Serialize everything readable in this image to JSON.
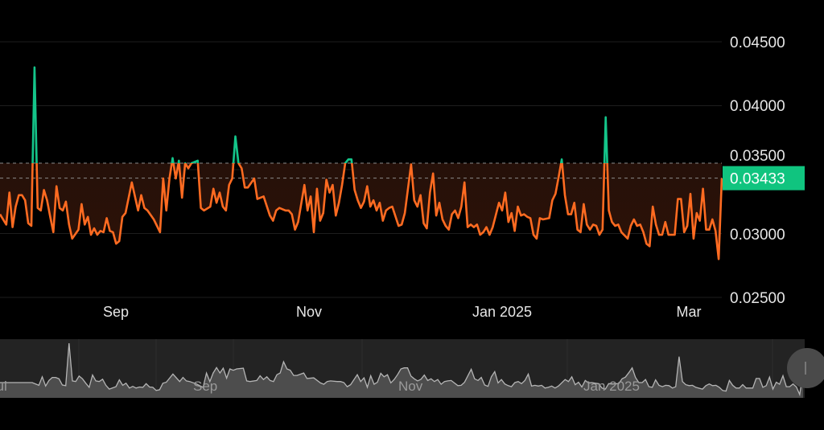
{
  "chart_data": {
    "type": "line",
    "style": "baseline",
    "title": "",
    "xlabel": "",
    "ylabel": "",
    "ylim": [
      0.025,
      0.045
    ],
    "grid": true,
    "baseline": 0.0355,
    "colors": {
      "above": "#14c58a",
      "below": "#ff6b21",
      "fill_below": "#3a1a0c",
      "badge": "#10c47f"
    },
    "y_ticks": [
      "0.04500",
      "0.04000",
      "0.03500",
      "0.03000",
      "0.02500"
    ],
    "x_ticks": [
      "Sep",
      "Nov",
      "Jan 2025",
      "Mar"
    ],
    "current_value": "0.03433",
    "points": [
      [
        "2024-07-26",
        0.0315
      ],
      [
        "2024-07-28",
        0.0307
      ],
      [
        "2024-07-29",
        0.0332
      ],
      [
        "2024-07-30",
        0.0305
      ],
      [
        "2024-07-31",
        0.0321
      ],
      [
        "2024-08-01",
        0.033
      ],
      [
        "2024-08-02",
        0.033
      ],
      [
        "2024-08-03",
        0.0326
      ],
      [
        "2024-08-04",
        0.0308
      ],
      [
        "2024-08-05",
        0.0306
      ],
      [
        "2024-08-06",
        0.043
      ],
      [
        "2024-08-07",
        0.032
      ],
      [
        "2024-08-08",
        0.0318
      ],
      [
        "2024-08-09",
        0.0334
      ],
      [
        "2024-08-10",
        0.0326
      ],
      [
        "2024-08-11",
        0.0313
      ],
      [
        "2024-08-12",
        0.0301
      ],
      [
        "2024-08-13",
        0.0337
      ],
      [
        "2024-08-14",
        0.032
      ],
      [
        "2024-08-15",
        0.0318
      ],
      [
        "2024-08-16",
        0.0325
      ],
      [
        "2024-08-17",
        0.0307
      ],
      [
        "2024-08-18",
        0.0296
      ],
      [
        "2024-08-20",
        0.0303
      ],
      [
        "2024-08-21",
        0.0323
      ],
      [
        "2024-08-22",
        0.0307
      ],
      [
        "2024-08-23",
        0.0313
      ],
      [
        "2024-08-24",
        0.0299
      ],
      [
        "2024-08-25",
        0.0304
      ],
      [
        "2024-08-26",
        0.0299
      ],
      [
        "2024-08-27",
        0.0302
      ],
      [
        "2024-08-28",
        0.0301
      ],
      [
        "2024-08-29",
        0.0312
      ],
      [
        "2024-08-30",
        0.0302
      ],
      [
        "2024-08-31",
        0.0301
      ],
      [
        "2024-09-01",
        0.0292
      ],
      [
        "2024-09-02",
        0.0294
      ],
      [
        "2024-09-03",
        0.0313
      ],
      [
        "2024-09-04",
        0.0316
      ],
      [
        "2024-09-06",
        0.034
      ],
      [
        "2024-09-08",
        0.0318
      ],
      [
        "2024-09-09",
        0.033
      ],
      [
        "2024-09-10",
        0.032
      ],
      [
        "2024-09-11",
        0.0318
      ],
      [
        "2024-09-13",
        0.0311
      ],
      [
        "2024-09-15",
        0.0301
      ],
      [
        "2024-09-16",
        0.0343
      ],
      [
        "2024-09-17",
        0.0318
      ],
      [
        "2024-09-18",
        0.0343
      ],
      [
        "2024-09-19",
        0.0359
      ],
      [
        "2024-09-20",
        0.0343
      ],
      [
        "2024-09-21",
        0.0357
      ],
      [
        "2024-09-22",
        0.0328
      ],
      [
        "2024-09-23",
        0.0355
      ],
      [
        "2024-09-24",
        0.0351
      ],
      [
        "2024-09-25",
        0.0355
      ],
      [
        "2024-09-27",
        0.0357
      ],
      [
        "2024-09-28",
        0.032
      ],
      [
        "2024-09-29",
        0.0318
      ],
      [
        "2024-10-01",
        0.0321
      ],
      [
        "2024-10-02",
        0.0335
      ],
      [
        "2024-10-03",
        0.0324
      ],
      [
        "2024-10-04",
        0.0332
      ],
      [
        "2024-10-05",
        0.0321
      ],
      [
        "2024-10-06",
        0.0318
      ],
      [
        "2024-10-07",
        0.0338
      ],
      [
        "2024-10-08",
        0.0343
      ],
      [
        "2024-10-09",
        0.0376
      ],
      [
        "2024-10-10",
        0.0355
      ],
      [
        "2024-10-11",
        0.0351
      ],
      [
        "2024-10-12",
        0.0336
      ],
      [
        "2024-10-13",
        0.0336
      ],
      [
        "2024-10-15",
        0.0343
      ],
      [
        "2024-10-16",
        0.0327
      ],
      [
        "2024-10-18",
        0.0329
      ],
      [
        "2024-10-20",
        0.0314
      ],
      [
        "2024-10-21",
        0.031
      ],
      [
        "2024-10-22",
        0.0318
      ],
      [
        "2024-10-23",
        0.032
      ],
      [
        "2024-10-25",
        0.0318
      ],
      [
        "2024-10-26",
        0.0318
      ],
      [
        "2024-10-27",
        0.0315
      ],
      [
        "2024-10-28",
        0.0303
      ],
      [
        "2024-10-29",
        0.0309
      ],
      [
        "2024-10-31",
        0.0338
      ],
      [
        "2024-11-01",
        0.0318
      ],
      [
        "2024-11-02",
        0.0329
      ],
      [
        "2024-11-03",
        0.0301
      ],
      [
        "2024-11-04",
        0.0335
      ],
      [
        "2024-11-05",
        0.031
      ],
      [
        "2024-11-06",
        0.0316
      ],
      [
        "2024-11-07",
        0.0342
      ],
      [
        "2024-11-08",
        0.0332
      ],
      [
        "2024-11-09",
        0.0338
      ],
      [
        "2024-11-10",
        0.0314
      ],
      [
        "2024-11-11",
        0.0324
      ],
      [
        "2024-11-12",
        0.0338
      ],
      [
        "2024-11-13",
        0.0355
      ],
      [
        "2024-11-14",
        0.0358
      ],
      [
        "2024-11-15",
        0.0358
      ],
      [
        "2024-11-16",
        0.0334
      ],
      [
        "2024-11-17",
        0.0326
      ],
      [
        "2024-11-18",
        0.032
      ],
      [
        "2024-11-19",
        0.0325
      ],
      [
        "2024-11-20",
        0.0337
      ],
      [
        "2024-11-21",
        0.0321
      ],
      [
        "2024-11-22",
        0.0326
      ],
      [
        "2024-11-23",
        0.0318
      ],
      [
        "2024-11-24",
        0.0324
      ],
      [
        "2024-11-25",
        0.031
      ],
      [
        "2024-11-26",
        0.0318
      ],
      [
        "2024-11-27",
        0.032
      ],
      [
        "2024-11-28",
        0.0321
      ],
      [
        "2024-11-30",
        0.0306
      ],
      [
        "2024-12-01",
        0.0307
      ],
      [
        "2024-12-02",
        0.0316
      ],
      [
        "2024-12-04",
        0.0354
      ],
      [
        "2024-12-05",
        0.0326
      ],
      [
        "2024-12-06",
        0.0321
      ],
      [
        "2024-12-07",
        0.033
      ],
      [
        "2024-12-08",
        0.0308
      ],
      [
        "2024-12-09",
        0.0304
      ],
      [
        "2024-12-10",
        0.0332
      ],
      [
        "2024-12-11",
        0.0347
      ],
      [
        "2024-12-12",
        0.0314
      ],
      [
        "2024-12-13",
        0.0324
      ],
      [
        "2024-12-14",
        0.0311
      ],
      [
        "2024-12-15",
        0.0306
      ],
      [
        "2024-12-16",
        0.0303
      ],
      [
        "2024-12-17",
        0.0315
      ],
      [
        "2024-12-18",
        0.0318
      ],
      [
        "2024-12-19",
        0.0312
      ],
      [
        "2024-12-20",
        0.0321
      ],
      [
        "2024-12-21",
        0.034
      ],
      [
        "2024-12-22",
        0.0305
      ],
      [
        "2024-12-23",
        0.0307
      ],
      [
        "2024-12-24",
        0.0305
      ],
      [
        "2024-12-25",
        0.0307
      ],
      [
        "2024-12-26",
        0.0299
      ],
      [
        "2024-12-27",
        0.0301
      ],
      [
        "2024-12-28",
        0.0305
      ],
      [
        "2024-12-29",
        0.0299
      ],
      [
        "2024-12-30",
        0.0305
      ],
      [
        "2025-01-01",
        0.0324
      ],
      [
        "2025-01-02",
        0.0318
      ],
      [
        "2025-01-03",
        0.0332
      ],
      [
        "2025-01-04",
        0.0309
      ],
      [
        "2025-01-05",
        0.0316
      ],
      [
        "2025-01-06",
        0.0302
      ],
      [
        "2025-01-07",
        0.0321
      ],
      [
        "2025-01-08",
        0.0314
      ],
      [
        "2025-01-09",
        0.0315
      ],
      [
        "2025-01-10",
        0.0313
      ],
      [
        "2025-01-11",
        0.0312
      ],
      [
        "2025-01-12",
        0.0299
      ],
      [
        "2025-01-13",
        0.0296
      ],
      [
        "2025-01-14",
        0.0312
      ],
      [
        "2025-01-15",
        0.0311
      ],
      [
        "2025-01-17",
        0.0312
      ],
      [
        "2025-01-18",
        0.0326
      ],
      [
        "2025-01-19",
        0.0331
      ],
      [
        "2025-01-20",
        0.0344
      ],
      [
        "2025-01-21",
        0.0358
      ],
      [
        "2025-01-22",
        0.033
      ],
      [
        "2025-01-23",
        0.0315
      ],
      [
        "2025-01-24",
        0.0315
      ],
      [
        "2025-01-25",
        0.0324
      ],
      [
        "2025-01-26",
        0.0303
      ],
      [
        "2025-01-27",
        0.0301
      ],
      [
        "2025-01-28",
        0.0323
      ],
      [
        "2025-01-29",
        0.0307
      ],
      [
        "2025-01-30",
        0.0303
      ],
      [
        "2025-01-31",
        0.0307
      ],
      [
        "2025-02-01",
        0.0306
      ],
      [
        "2025-02-02",
        0.0299
      ],
      [
        "2025-02-03",
        0.0303
      ],
      [
        "2025-02-04",
        0.0391
      ],
      [
        "2025-02-05",
        0.0318
      ],
      [
        "2025-02-06",
        0.0309
      ],
      [
        "2025-02-07",
        0.0306
      ],
      [
        "2025-02-08",
        0.0307
      ],
      [
        "2025-02-09",
        0.0301
      ],
      [
        "2025-02-11",
        0.0296
      ],
      [
        "2025-02-12",
        0.0306
      ],
      [
        "2025-02-13",
        0.0311
      ],
      [
        "2025-02-14",
        0.0306
      ],
      [
        "2025-02-15",
        0.0307
      ],
      [
        "2025-02-16",
        0.0301
      ],
      [
        "2025-02-17",
        0.0292
      ],
      [
        "2025-02-18",
        0.029
      ],
      [
        "2025-02-19",
        0.0321
      ],
      [
        "2025-02-20",
        0.0307
      ],
      [
        "2025-02-21",
        0.0299
      ],
      [
        "2025-02-22",
        0.0299
      ],
      [
        "2025-02-23",
        0.0309
      ],
      [
        "2025-02-24",
        0.0299
      ],
      [
        "2025-02-25",
        0.0299
      ],
      [
        "2025-02-26",
        0.0299
      ],
      [
        "2025-02-27",
        0.0327
      ],
      [
        "2025-02-28",
        0.0327
      ],
      [
        "2025-03-01",
        0.0301
      ],
      [
        "2025-03-02",
        0.0306
      ],
      [
        "2025-03-03",
        0.0331
      ],
      [
        "2025-03-04",
        0.0296
      ],
      [
        "2025-03-05",
        0.0316
      ],
      [
        "2025-03-06",
        0.031
      ],
      [
        "2025-03-07",
        0.0335
      ],
      [
        "2025-03-08",
        0.0303
      ],
      [
        "2025-03-09",
        0.0303
      ],
      [
        "2025-03-10",
        0.0311
      ],
      [
        "2025-03-11",
        0.0302
      ],
      [
        "2025-03-12",
        0.028
      ],
      [
        "2025-03-13",
        0.03433
      ]
    ]
  },
  "navigator": {
    "x_ticks": [
      "Jul",
      "Sep",
      "Nov",
      "Jan 2025"
    ]
  }
}
